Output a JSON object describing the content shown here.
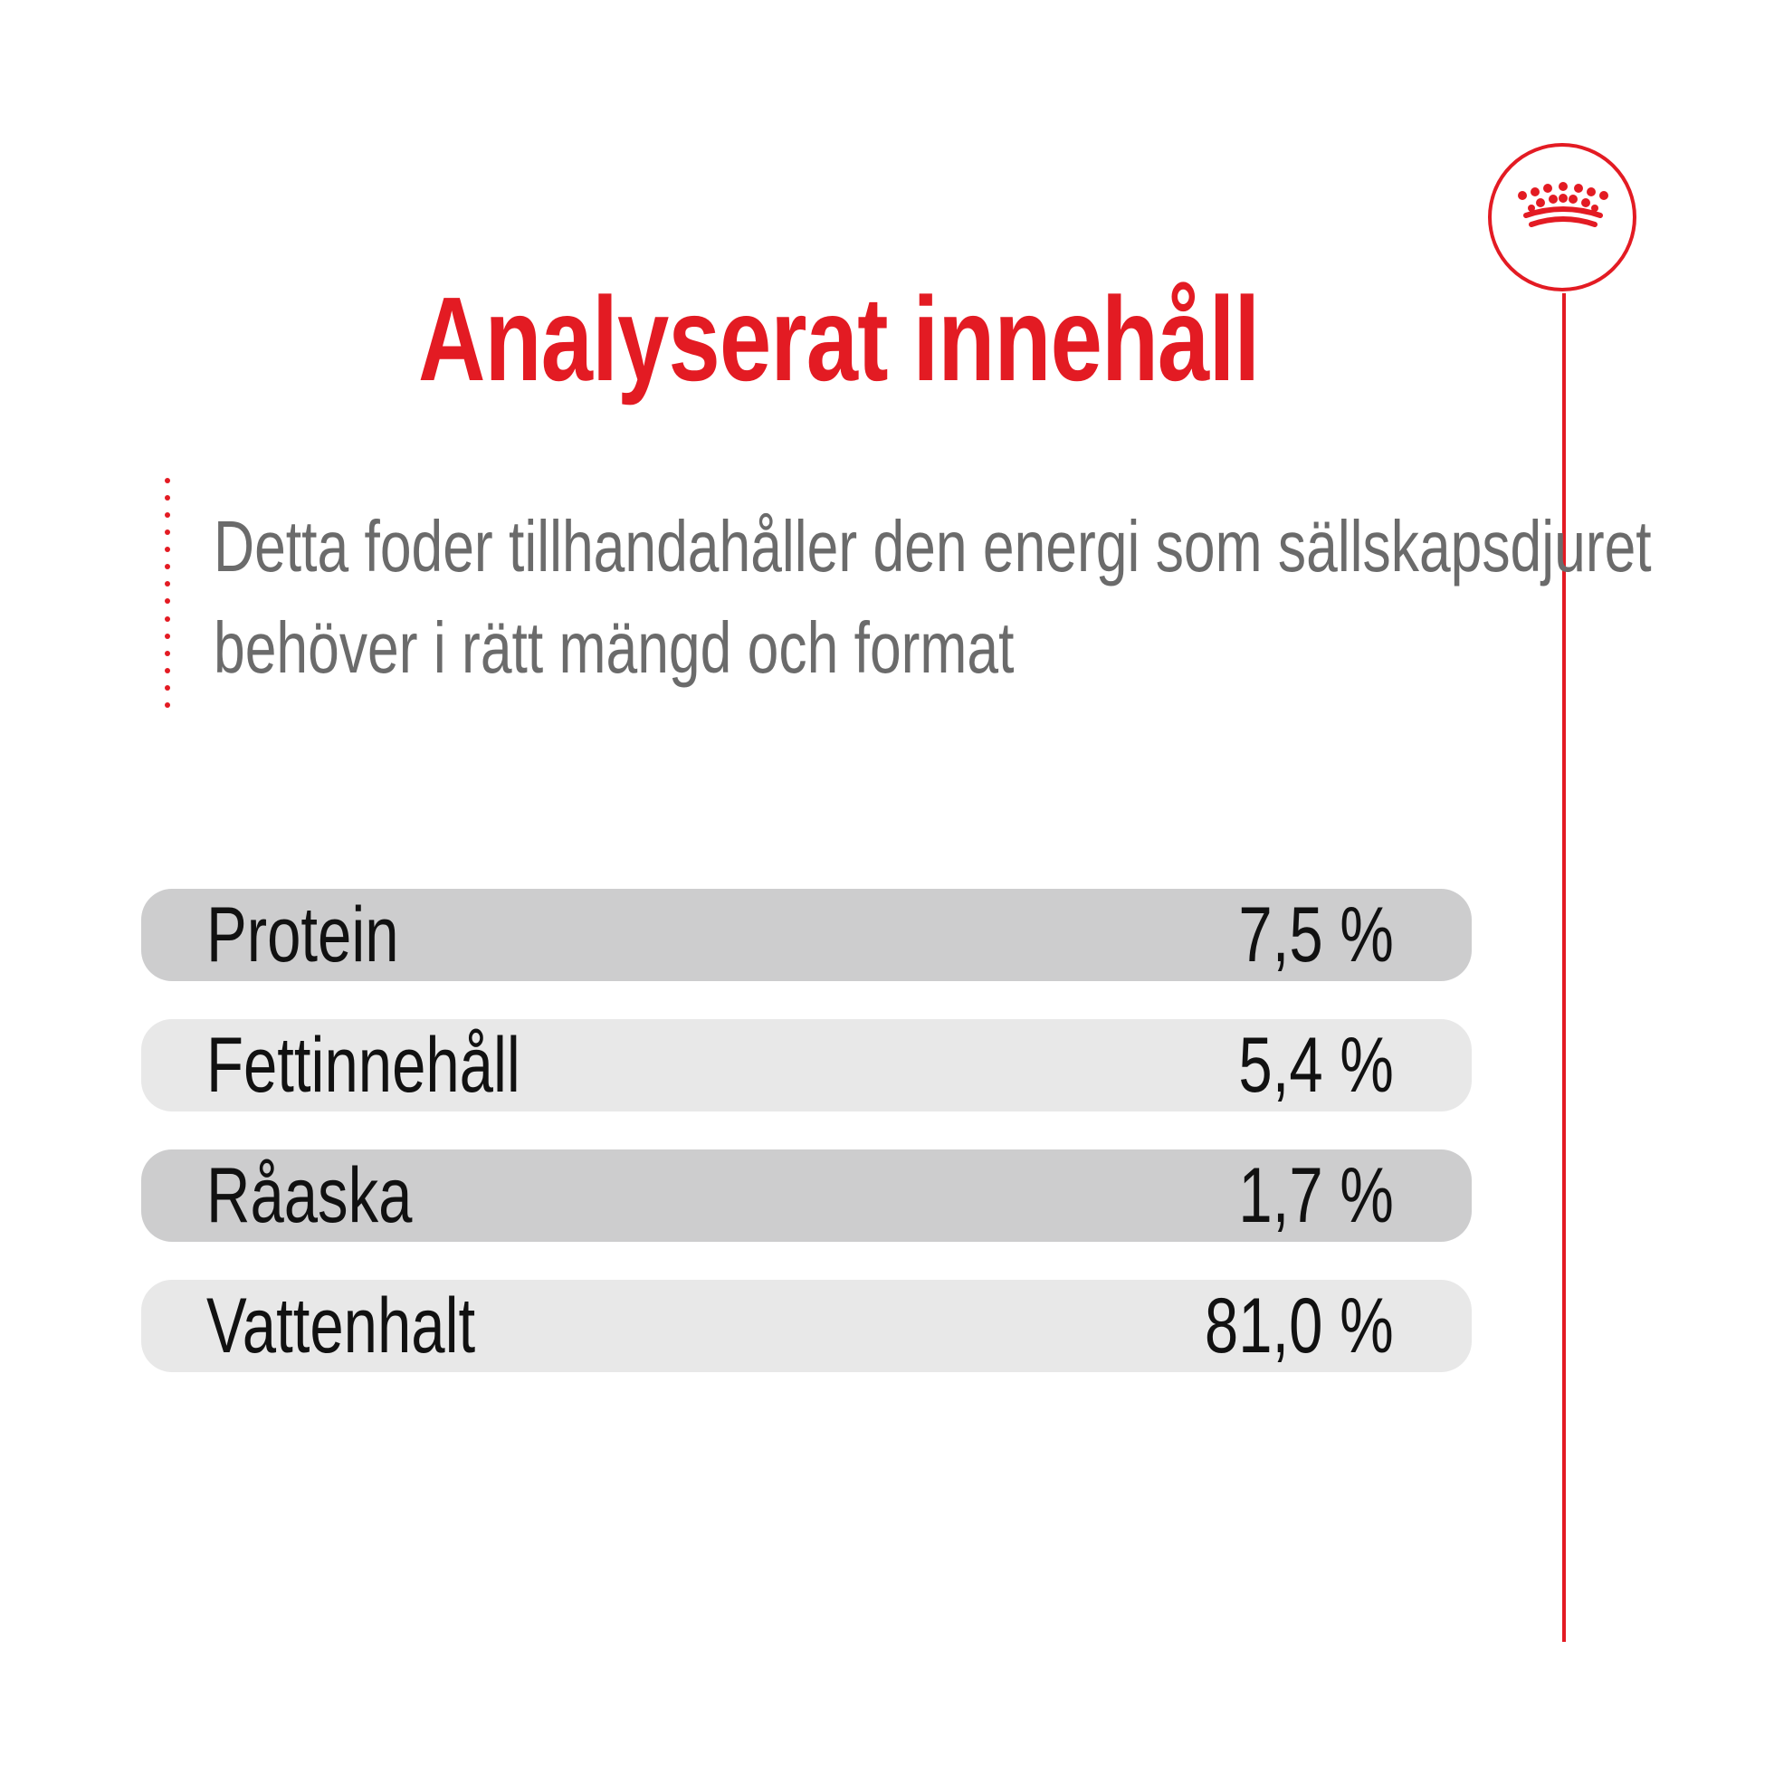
{
  "title": "Analyserat innehåll",
  "description": {
    "line1": "Detta foder tillhandahåller den energi som sällskapsdjuret",
    "line2": "behöver i rätt mängd och format"
  },
  "nutrients": [
    {
      "label": "Protein",
      "value": "7,5 %"
    },
    {
      "label": "Fettinnehåll",
      "value": "5,4 %"
    },
    {
      "label": "Råaska",
      "value": "1,7 %"
    },
    {
      "label": "Vattenhalt",
      "value": "81,0 %"
    }
  ],
  "colors": {
    "brand_red": "#e31b23",
    "row_dark": "#cdcdce",
    "row_light": "#e8e8e8",
    "text_gray": "#6b6b6b"
  },
  "icons": {
    "logo": "crown-icon"
  }
}
